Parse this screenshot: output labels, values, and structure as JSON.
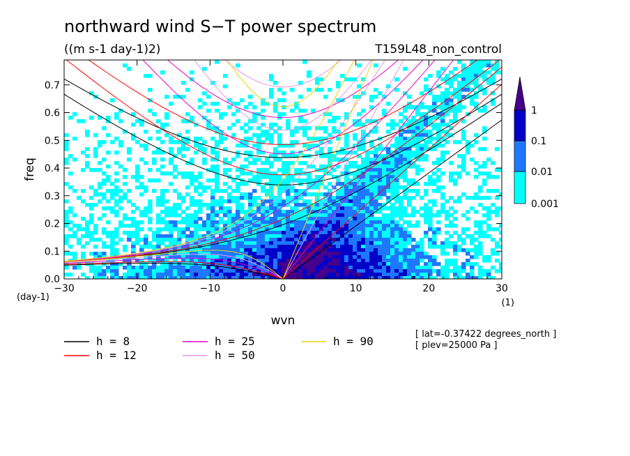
{
  "chart_data": {
    "type": "heatmap",
    "title": "northward wind S−T power spectrum",
    "subtitle": "((m s-1 day-1)2)",
    "run_label": "T159L48_non_control",
    "xlabel": "wvn",
    "xunit": "(1)",
    "ylabel": "freq",
    "yunit": "(day-1)",
    "xlim": [
      -30,
      30
    ],
    "ylim": [
      0,
      0.79
    ],
    "x_ticks": [
      "−30",
      "−20",
      "−10",
      "0",
      "10",
      "20",
      "30"
    ],
    "y_ticks": [
      "0.0",
      "0.1",
      "0.2",
      "0.3",
      "0.4",
      "0.5",
      "0.6",
      "0.7"
    ],
    "colorbar": {
      "levels": [
        "0.001",
        "0.01",
        "0.1",
        "1"
      ],
      "colors": [
        "#00ffff",
        "#1e78ff",
        "#0000c8",
        "#46008c"
      ]
    },
    "annotations": [
      "[ lat=-0.37422 degrees_north ]",
      "[ plev=25000 Pa ]"
    ],
    "dispersion_curves": [
      {
        "label": "h =  8",
        "h": 8,
        "color": "#000000"
      },
      {
        "label": "h = 12",
        "h": 12,
        "color": "#ff0000"
      },
      {
        "label": "h = 25",
        "h": 25,
        "color": "#e600c8"
      },
      {
        "label": "h = 50",
        "h": 50,
        "color": "#e696e6"
      },
      {
        "label": "h = 90",
        "h": 90,
        "color": "#f0d200"
      }
    ]
  }
}
